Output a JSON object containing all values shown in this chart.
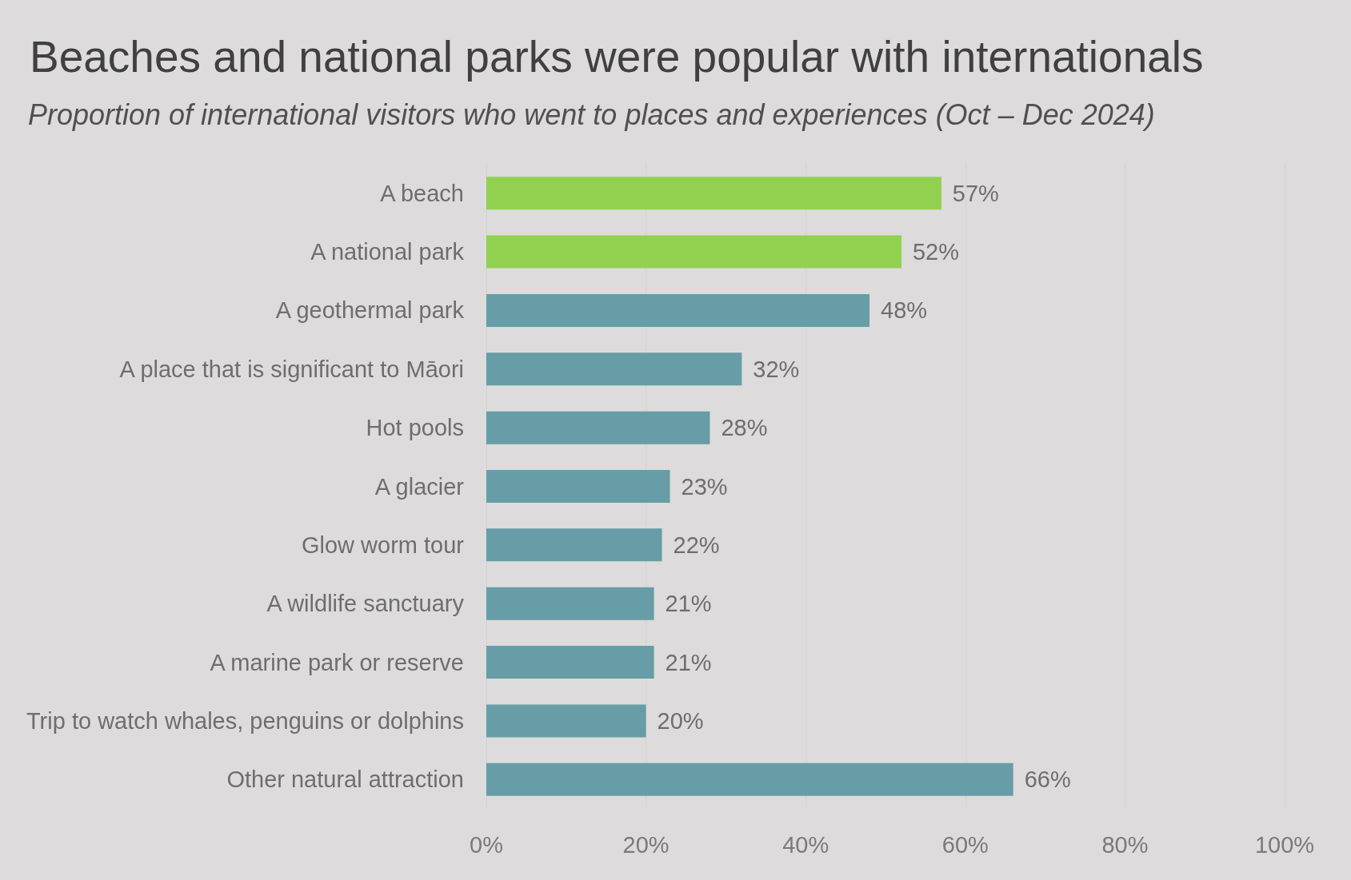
{
  "chart_data": {
    "type": "bar",
    "orientation": "horizontal",
    "title": "Beaches and national parks were popular with internationals",
    "subtitle": "Proportion of international visitors who went to places and experiences (Oct – Dec 2024)",
    "categories": [
      "A beach",
      "A national park",
      "A geothermal park",
      "A place that is significant to Māori",
      "Hot pools",
      "A glacier",
      "Glow worm tour",
      "A wildlife sanctuary",
      "A marine park or reserve",
      "Trip to watch whales, penguins or dolphins",
      "Other natural attraction"
    ],
    "values": [
      57,
      52,
      48,
      32,
      28,
      23,
      22,
      21,
      21,
      20,
      66
    ],
    "value_labels": [
      "57%",
      "52%",
      "48%",
      "32%",
      "28%",
      "23%",
      "22%",
      "21%",
      "21%",
      "20%",
      "66%"
    ],
    "colors": [
      "#92d050",
      "#92d050",
      "#669da6",
      "#669da6",
      "#669da6",
      "#669da6",
      "#669da6",
      "#669da6",
      "#669da6",
      "#669da6",
      "#669da6"
    ],
    "xlim": [
      0,
      100
    ],
    "xticks": [
      {
        "value": 0,
        "label": "0%"
      },
      {
        "value": 20,
        "label": "20%"
      },
      {
        "value": 40,
        "label": "40%"
      },
      {
        "value": 60,
        "label": "60%"
      },
      {
        "value": 80,
        "label": "80%"
      },
      {
        "value": 100,
        "label": "100%"
      }
    ],
    "grid": "x"
  }
}
